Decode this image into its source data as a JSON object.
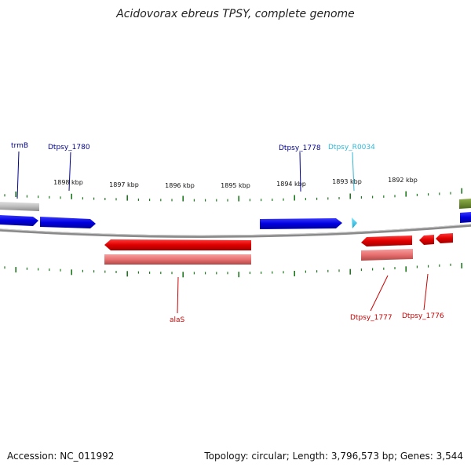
{
  "title": "Acidovorax ebreus TPSY, complete genome",
  "footer": {
    "accession": "Accession: NC_011992",
    "summary": "Topology: circular; Length: 3,796,573 bp; Genes: 3,544"
  },
  "scale_labels": [
    "1898 kbp",
    "1897 kbp",
    "1896 kbp",
    "1895 kbp",
    "1894 kbp",
    "1893 kbp",
    "1892 kbp"
  ],
  "genes": [
    {
      "name": "trmB",
      "strand": "+",
      "color": "#00008b"
    },
    {
      "name": "Dtpsy_1780",
      "strand": "+",
      "color": "#00008b"
    },
    {
      "name": "Dtpsy_1778",
      "strand": "+",
      "color": "#00008b"
    },
    {
      "name": "Dtpsy_R0034",
      "strand": "+",
      "color": "#33b7d6"
    },
    {
      "name": "alaS",
      "strand": "-",
      "color": "#cc0000"
    },
    {
      "name": "Dtpsy_1777",
      "strand": "-",
      "color": "#cc0000"
    },
    {
      "name": "Dtpsy_1776",
      "strand": "-",
      "color": "#cc0000"
    }
  ],
  "colors": {
    "forward_cds": "#0000e0",
    "reverse_cds": "#e00000",
    "reverse_gene": "#ea7a7a",
    "gene_unknown": "#bbbbbb",
    "rna": "#33c8e8",
    "other_feature": "#6b8e23",
    "backbone": "#808080",
    "tick": "#1e7a1e"
  }
}
